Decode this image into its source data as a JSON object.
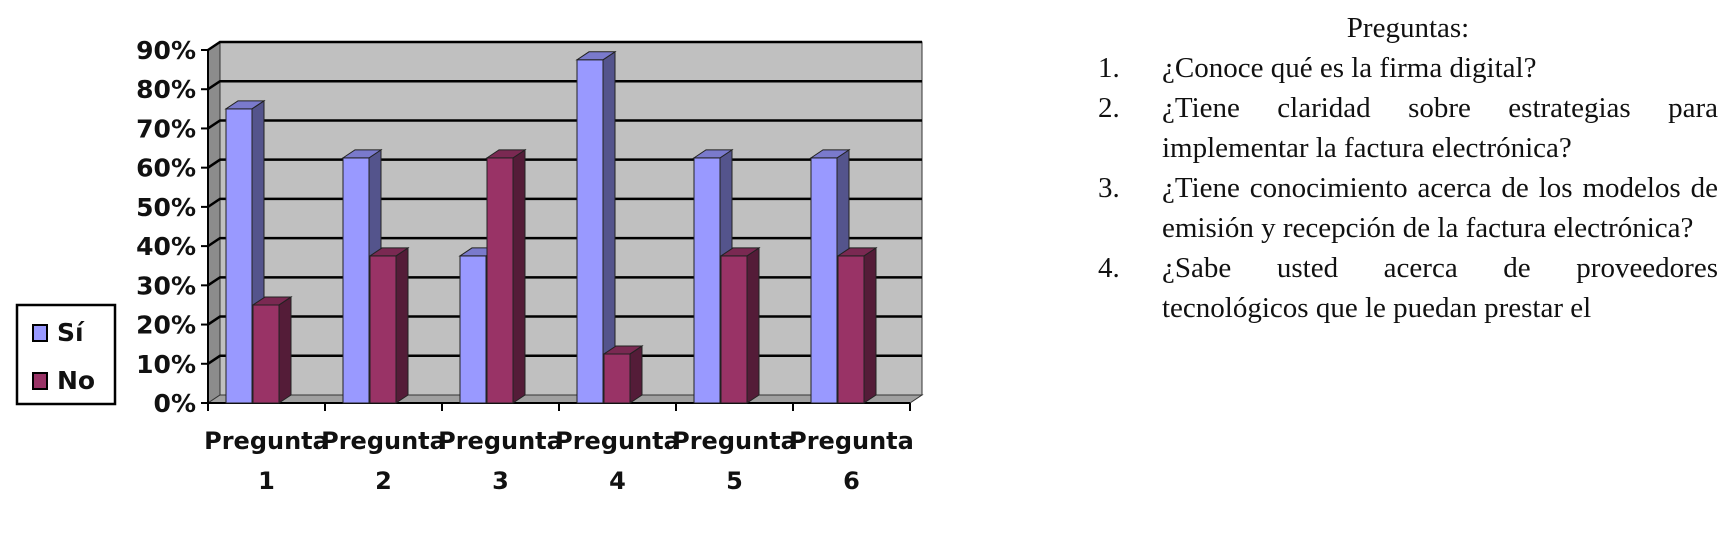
{
  "chart_data": {
    "type": "bar",
    "categories": [
      [
        "Pregunta",
        "1"
      ],
      [
        "Pregunta",
        "2"
      ],
      [
        "Pregunta",
        "3"
      ],
      [
        "Pregunta",
        "4"
      ],
      [
        "Pregunta",
        "5"
      ],
      [
        "Pregunta",
        "6"
      ]
    ],
    "series": [
      {
        "name": "Sí",
        "values": [
          75,
          62.5,
          37.5,
          87.5,
          62.5,
          62.5
        ],
        "color": "#9999ff"
      },
      {
        "name": "No",
        "values": [
          25,
          37.5,
          62.5,
          12.5,
          37.5,
          37.5
        ],
        "color": "#993366"
      }
    ],
    "y_ticks": [
      "0%",
      "10%",
      "20%",
      "30%",
      "40%",
      "50%",
      "60%",
      "70%",
      "80%",
      "90%"
    ],
    "ylim": [
      0,
      90
    ],
    "grid": true,
    "plot_background": "#c0c0c0",
    "legend_position": "left"
  },
  "questions": {
    "heading": "Preguntas:",
    "items": [
      {
        "num": "1.",
        "text": "¿Conoce qué es la firma digital?"
      },
      {
        "num": "2.",
        "text": "¿Tiene claridad sobre estrategias para implementar la factura electrónica?"
      },
      {
        "num": "3.",
        "text": "¿Tiene conocimiento acerca de los modelos de emisión y recepción de la factura electrónica?"
      },
      {
        "num": "4.",
        "text": "¿Sabe usted acerca de proveedores tecnológicos que le puedan prestar el"
      }
    ]
  }
}
